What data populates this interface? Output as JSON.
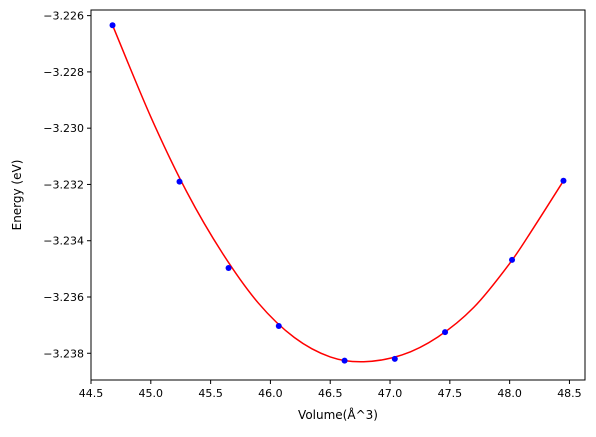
{
  "chart_data": {
    "type": "scatter",
    "title": "",
    "xlabel": "Volume(Å^3)",
    "ylabel": "Energy (eV)",
    "xlim": [
      44.5,
      48.63
    ],
    "ylim": [
      -3.23895,
      -3.2258
    ],
    "x_ticks": [
      44.5,
      45.0,
      45.5,
      46.0,
      46.5,
      47.0,
      47.5,
      48.0,
      48.5
    ],
    "x_tick_labels": [
      "44.5",
      "45.0",
      "45.5",
      "46.0",
      "46.5",
      "47.0",
      "47.5",
      "48.0",
      "48.5"
    ],
    "y_ticks": [
      -3.226,
      -3.228,
      -3.23,
      -3.232,
      -3.234,
      -3.236,
      -3.238
    ],
    "y_tick_labels": [
      "−3.226",
      "−3.228",
      "−3.230",
      "−3.232",
      "−3.234",
      "−3.236",
      "−3.238"
    ],
    "grid": false,
    "series": [
      {
        "kind": "points",
        "color": "#0000ff",
        "x": [
          44.68,
          45.24,
          45.65,
          46.07,
          46.62,
          47.04,
          47.46,
          48.02,
          48.45
        ],
        "y": [
          -3.22634,
          -3.2319,
          -3.23497,
          -3.23703,
          -3.23826,
          -3.2382,
          -3.23725,
          -3.23468,
          -3.23187
        ]
      },
      {
        "kind": "fit-curve",
        "color": "#ff0000",
        "x": [
          44.68,
          45.0,
          45.3,
          45.6,
          45.9,
          46.2,
          46.5,
          46.78,
          47.1,
          47.4,
          47.7,
          48.0,
          48.2,
          48.45
        ],
        "y": [
          -3.22634,
          -3.2296,
          -3.23226,
          -3.23445,
          -3.23622,
          -3.23744,
          -3.23813,
          -3.2383,
          -3.23806,
          -3.23742,
          -3.23637,
          -3.23481,
          -3.23354,
          -3.23187
        ]
      }
    ]
  }
}
